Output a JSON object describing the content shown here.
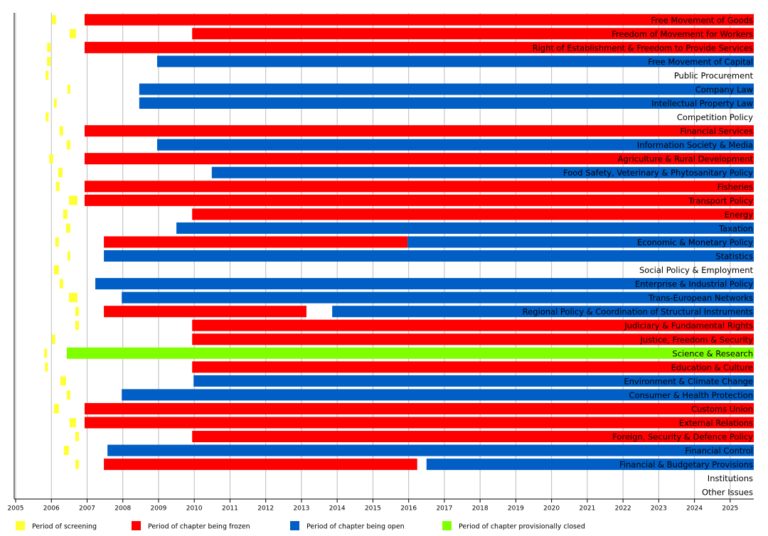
{
  "chart_data": {
    "type": "gantt",
    "categories": [
      "Free Movement of Goods",
      "Freedom of Movement for Workers",
      "Right of Establishment & Freedom to Provide Services",
      "Free Movement of Capital",
      "Public Procurement",
      "Company Law",
      "Intellectual Property Law",
      "Competition Policy",
      "Financial Services",
      "Information Society & Media",
      "Agriculture & Rural Development",
      "Food Safety, Veterinary & Phytosanitary Policy",
      "Fisheries",
      "Transport Policy",
      "Energy",
      "Taxation",
      "Economic & Monetary Policy",
      "Statistics",
      "Social Policy & Employment",
      "Enterprise & Industrial Policy",
      "Trans-European Networks",
      "Regional Policy & Coordination of Structural Instruments",
      "Judiciary & Fundamental Rights",
      "Justice, Freedom & Security",
      "Science & Research",
      "Education & Culture",
      "Environment & Climate Change",
      "Consumer & Health Protection",
      "Customs Union",
      "External Relations",
      "Foreign, Security & Defence Policy",
      "Financial Control",
      "Financial & Budgetary Provisions",
      "Institutions",
      "Other Issues"
    ],
    "series": [
      {
        "name": "Period of screening",
        "color": "#ffff33",
        "values": [
          [
            2006.01,
            2006.13
          ],
          [
            2006.51,
            2006.69
          ],
          [
            2005.88,
            2005.98
          ],
          [
            2005.88,
            2005.98
          ],
          [
            2005.84,
            2005.92
          ],
          [
            2006.45,
            2006.53
          ],
          [
            2006.07,
            2006.15
          ],
          [
            2005.84,
            2005.92
          ],
          [
            2006.23,
            2006.33
          ],
          [
            2006.43,
            2006.53
          ],
          [
            2005.94,
            2006.05
          ],
          [
            2006.19,
            2006.31
          ],
          [
            2006.13,
            2006.23
          ],
          [
            2006.49,
            2006.73
          ],
          [
            2006.33,
            2006.45
          ],
          [
            2006.41,
            2006.53
          ],
          [
            2006.11,
            2006.21
          ],
          [
            2006.45,
            2006.53
          ],
          [
            2006.07,
            2006.21
          ],
          [
            2006.23,
            2006.33
          ],
          [
            2006.49,
            2006.73
          ],
          [
            2006.67,
            2006.77
          ],
          [
            2006.67,
            2006.77
          ],
          [
            2006.01,
            2006.11
          ],
          [
            2005.8,
            2005.88
          ],
          [
            2005.82,
            2005.9
          ],
          [
            2006.25,
            2006.41
          ],
          [
            2006.43,
            2006.53
          ],
          [
            2006.07,
            2006.21
          ],
          [
            2006.51,
            2006.69
          ],
          [
            2006.67,
            2006.77
          ],
          [
            2006.35,
            2006.49
          ],
          [
            2006.67,
            2006.77
          ],
          null,
          null
        ]
      },
      {
        "name": "Period of chapter being frozen",
        "color": "#ff0000",
        "values": [
          [
            2006.93,
            2025.66
          ],
          [
            2009.94,
            2025.66
          ],
          [
            2006.93,
            2025.66
          ],
          null,
          null,
          null,
          null,
          null,
          [
            2006.93,
            2025.66
          ],
          null,
          [
            2006.93,
            2025.66
          ],
          null,
          [
            2006.93,
            2025.66
          ],
          [
            2006.93,
            2025.66
          ],
          [
            2009.94,
            2025.66
          ],
          null,
          [
            2007.47,
            2015.97
          ],
          null,
          null,
          null,
          null,
          [
            2007.47,
            2013.14
          ],
          [
            2009.94,
            2025.66
          ],
          [
            2009.94,
            2025.66
          ],
          null,
          [
            2009.94,
            2025.66
          ],
          null,
          null,
          [
            2006.93,
            2025.66
          ],
          [
            2006.93,
            2025.66
          ],
          [
            2009.94,
            2025.66
          ],
          null,
          [
            2007.47,
            2016.24
          ],
          null,
          null
        ]
      },
      {
        "name": "Period of chapter being open",
        "color": "#005ec4",
        "values": [
          null,
          null,
          null,
          [
            2008.96,
            2025.66
          ],
          null,
          [
            2008.46,
            2025.66
          ],
          [
            2008.46,
            2025.66
          ],
          null,
          null,
          [
            2008.96,
            2025.66
          ],
          null,
          [
            2010.49,
            2025.66
          ],
          null,
          null,
          null,
          [
            2009.5,
            2025.66
          ],
          [
            2015.97,
            2025.66
          ],
          [
            2007.47,
            2025.66
          ],
          null,
          [
            2007.23,
            2025.66
          ],
          [
            2007.97,
            2025.66
          ],
          [
            2013.86,
            2025.66
          ],
          null,
          null,
          null,
          null,
          [
            2009.98,
            2025.66
          ],
          [
            2007.97,
            2025.66
          ],
          null,
          null,
          null,
          [
            2007.57,
            2025.66
          ],
          [
            2016.5,
            2025.66
          ],
          null,
          null
        ]
      },
      {
        "name": "Period of chapter provisionally closed",
        "color": "#80ff00",
        "values": [
          null,
          null,
          null,
          null,
          null,
          null,
          null,
          null,
          null,
          null,
          null,
          null,
          null,
          null,
          null,
          null,
          null,
          null,
          null,
          null,
          null,
          null,
          null,
          null,
          [
            2006.43,
            2025.66
          ],
          null,
          null,
          null,
          null,
          null,
          null,
          null,
          null,
          null,
          null
        ]
      }
    ],
    "xlim": [
      2005,
      2025.66
    ],
    "xticks": [
      2005,
      2006,
      2007,
      2008,
      2009,
      2010,
      2011,
      2012,
      2013,
      2014,
      2015,
      2016,
      2017,
      2018,
      2019,
      2020,
      2021,
      2022,
      2023,
      2024,
      2025
    ],
    "grid": true
  }
}
